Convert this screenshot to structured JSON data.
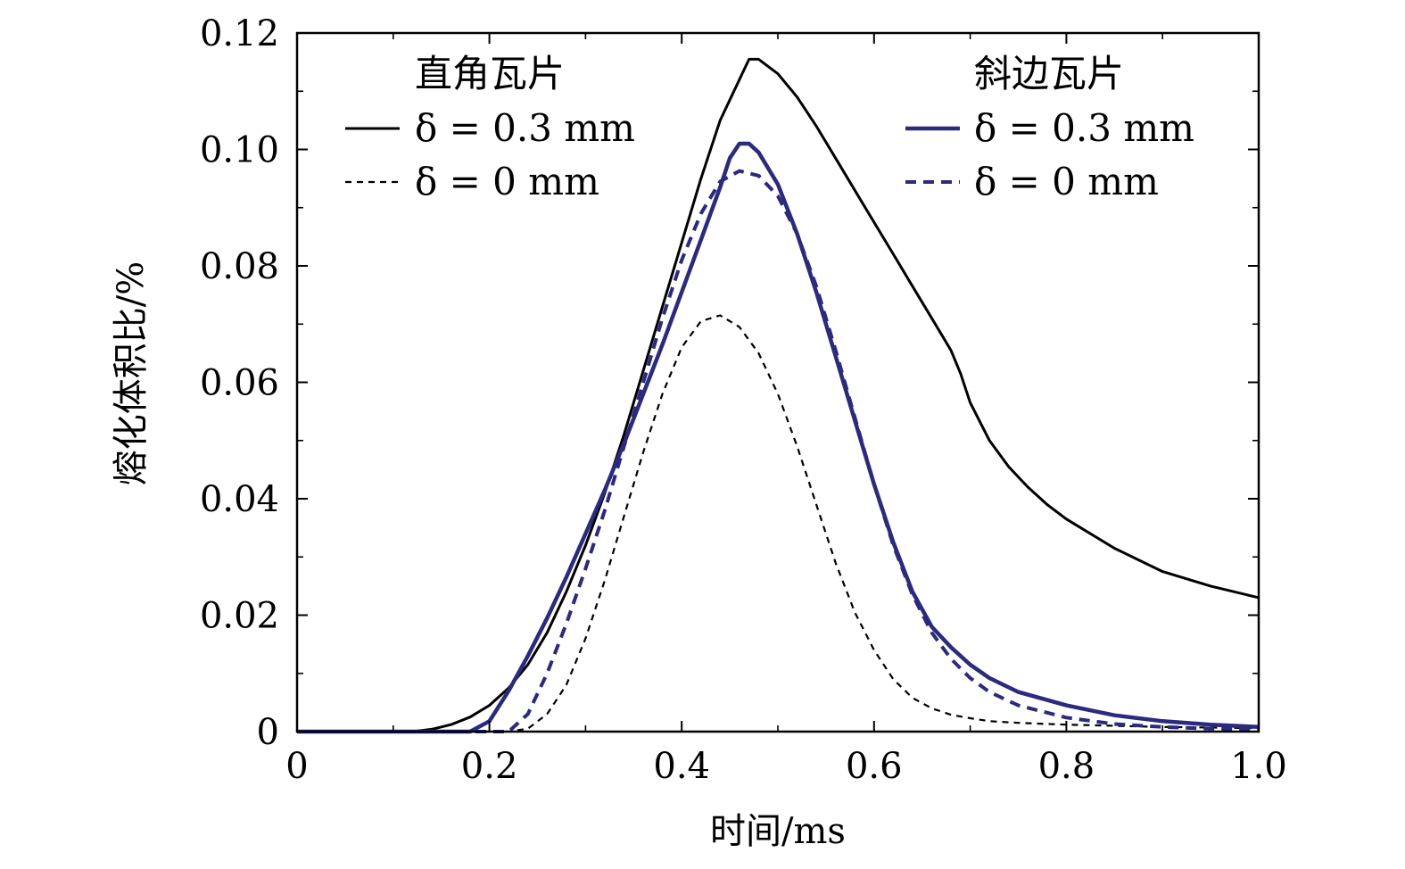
{
  "chart_data": {
    "type": "line",
    "xlabel": "时间/ms",
    "ylabel": "熔化体积比/%",
    "xlim": [
      0,
      1.0
    ],
    "ylim": [
      0,
      0.12
    ],
    "x_ticks": [
      0,
      0.2,
      0.4,
      0.6,
      0.8,
      1.0
    ],
    "x_tick_labels": [
      "0",
      "0.2",
      "0.4",
      "0.6",
      "0.8",
      "1.0"
    ],
    "y_ticks": [
      0,
      0.02,
      0.04,
      0.06,
      0.08,
      0.1,
      0.12
    ],
    "y_tick_labels": [
      "0",
      "0.02",
      "0.04",
      "0.06",
      "0.08",
      "0.10",
      "0.12"
    ],
    "legend_groups": [
      {
        "title": "直角瓦片",
        "position": "top-left"
      },
      {
        "title": "斜边瓦片",
        "position": "top-right"
      }
    ],
    "series": [
      {
        "group": 0,
        "name": "δ = 0.3 mm",
        "color": "#000000",
        "dash": "solid",
        "x": [
          0,
          0.12,
          0.14,
          0.16,
          0.18,
          0.2,
          0.22,
          0.24,
          0.26,
          0.28,
          0.3,
          0.32,
          0.34,
          0.36,
          0.38,
          0.4,
          0.42,
          0.44,
          0.46,
          0.47,
          0.48,
          0.5,
          0.52,
          0.54,
          0.56,
          0.58,
          0.6,
          0.62,
          0.64,
          0.66,
          0.68,
          0.69,
          0.7,
          0.72,
          0.74,
          0.76,
          0.78,
          0.8,
          0.85,
          0.9,
          0.95,
          1.0
        ],
        "y": [
          0,
          0,
          0.0004,
          0.0012,
          0.0025,
          0.0045,
          0.0075,
          0.0115,
          0.017,
          0.024,
          0.032,
          0.041,
          0.051,
          0.062,
          0.073,
          0.084,
          0.095,
          0.105,
          0.112,
          0.1155,
          0.1155,
          0.113,
          0.109,
          0.104,
          0.0985,
          0.093,
          0.0875,
          0.082,
          0.0765,
          0.071,
          0.0655,
          0.0615,
          0.0565,
          0.05,
          0.0455,
          0.042,
          0.039,
          0.0365,
          0.0315,
          0.0275,
          0.025,
          0.023
        ]
      },
      {
        "group": 0,
        "name": "δ = 0 mm",
        "color": "#000000",
        "dash": "thin-dashed",
        "x": [
          0,
          0.22,
          0.24,
          0.26,
          0.28,
          0.3,
          0.32,
          0.34,
          0.36,
          0.38,
          0.4,
          0.42,
          0.44,
          0.46,
          0.48,
          0.5,
          0.52,
          0.54,
          0.56,
          0.58,
          0.6,
          0.62,
          0.64,
          0.66,
          0.68,
          0.7,
          0.72,
          0.75,
          0.8,
          0.85,
          0.9,
          1.0
        ],
        "y": [
          0,
          0,
          0.0005,
          0.003,
          0.008,
          0.016,
          0.026,
          0.037,
          0.048,
          0.058,
          0.066,
          0.0705,
          0.0715,
          0.0695,
          0.065,
          0.058,
          0.049,
          0.039,
          0.029,
          0.0205,
          0.014,
          0.009,
          0.0058,
          0.004,
          0.0029,
          0.0023,
          0.0018,
          0.0015,
          0.0012,
          0.001,
          0.0008,
          0.0006
        ]
      },
      {
        "group": 1,
        "name": "δ = 0.3 mm",
        "color": "#2b2a7e",
        "dash": "solid",
        "x": [
          0,
          0.18,
          0.2,
          0.22,
          0.24,
          0.26,
          0.28,
          0.3,
          0.32,
          0.34,
          0.36,
          0.38,
          0.4,
          0.42,
          0.44,
          0.45,
          0.46,
          0.47,
          0.48,
          0.5,
          0.52,
          0.54,
          0.56,
          0.58,
          0.6,
          0.62,
          0.64,
          0.66,
          0.68,
          0.7,
          0.72,
          0.75,
          0.8,
          0.85,
          0.9,
          0.95,
          1.0
        ],
        "y": [
          0,
          0,
          0.0018,
          0.007,
          0.013,
          0.0195,
          0.0265,
          0.034,
          0.0415,
          0.0495,
          0.058,
          0.0665,
          0.0755,
          0.0845,
          0.0935,
          0.0985,
          0.101,
          0.101,
          0.0995,
          0.094,
          0.0855,
          0.0755,
          0.0645,
          0.0535,
          0.0425,
          0.0325,
          0.024,
          0.018,
          0.0145,
          0.0115,
          0.0092,
          0.0068,
          0.0045,
          0.0028,
          0.0018,
          0.0012,
          0.0008
        ]
      },
      {
        "group": 1,
        "name": "δ = 0 mm",
        "color": "#2b2a7e",
        "dash": "thick-dashed",
        "x": [
          0,
          0.22,
          0.24,
          0.26,
          0.28,
          0.3,
          0.32,
          0.34,
          0.36,
          0.38,
          0.4,
          0.42,
          0.44,
          0.46,
          0.48,
          0.5,
          0.52,
          0.54,
          0.56,
          0.58,
          0.6,
          0.62,
          0.64,
          0.66,
          0.68,
          0.7,
          0.72,
          0.75,
          0.8,
          0.85,
          0.9,
          0.95,
          1.0
        ],
        "y": [
          0,
          0,
          0.003,
          0.01,
          0.0185,
          0.028,
          0.038,
          0.049,
          0.06,
          0.071,
          0.081,
          0.089,
          0.0945,
          0.0963,
          0.0955,
          0.092,
          0.0855,
          0.0765,
          0.0655,
          0.054,
          0.0425,
          0.032,
          0.0235,
          0.017,
          0.0125,
          0.0092,
          0.0068,
          0.0045,
          0.0024,
          0.0013,
          0.0008,
          0.0005,
          0.0003
        ]
      }
    ]
  }
}
